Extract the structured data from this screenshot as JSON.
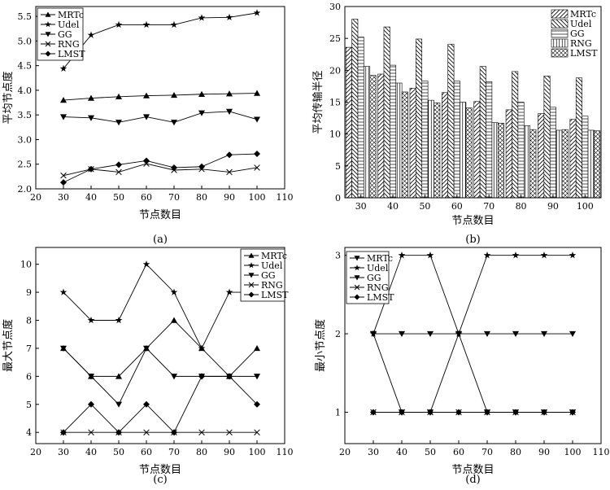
{
  "chart_data": [
    {
      "panel": "a",
      "type": "line",
      "caption": "(a)",
      "xlabel": "节点数目",
      "ylabel": "平均节点度",
      "xlim": [
        20,
        110
      ],
      "ylim": [
        2.0,
        5.7
      ],
      "xticks": [
        20,
        30,
        40,
        50,
        60,
        70,
        80,
        90,
        100,
        110
      ],
      "yticks": [
        2.0,
        2.5,
        3.0,
        3.5,
        4.0,
        4.5,
        5.0,
        5.5
      ],
      "legend_position": "top-left",
      "x": [
        30,
        40,
        50,
        60,
        70,
        80,
        90,
        100
      ],
      "series": [
        {
          "name": "MRTc",
          "marker": "triangle-up",
          "values": [
            3.8,
            3.84,
            3.87,
            3.89,
            3.9,
            3.92,
            3.93,
            3.94
          ]
        },
        {
          "name": "Udel",
          "marker": "star",
          "values": [
            4.44,
            5.12,
            5.33,
            5.33,
            5.33,
            5.47,
            5.48,
            5.57
          ]
        },
        {
          "name": "GG",
          "marker": "triangle-down",
          "values": [
            3.46,
            3.44,
            3.35,
            3.46,
            3.35,
            3.54,
            3.57,
            3.41
          ]
        },
        {
          "name": "RNG",
          "marker": "x",
          "values": [
            2.27,
            2.4,
            2.34,
            2.51,
            2.38,
            2.4,
            2.34,
            2.43
          ]
        },
        {
          "name": "LMST",
          "marker": "diamond",
          "values": [
            2.13,
            2.4,
            2.49,
            2.57,
            2.43,
            2.45,
            2.69,
            2.71
          ]
        }
      ]
    },
    {
      "panel": "b",
      "type": "bar",
      "caption": "(b)",
      "xlabel": "节点数目",
      "ylabel": "平均传输半径",
      "ylim": [
        0,
        30
      ],
      "yticks": [
        0,
        5,
        10,
        15,
        20,
        25,
        30
      ],
      "legend_position": "top-right",
      "categories": [
        "30",
        "40",
        "50",
        "60",
        "70",
        "80",
        "90",
        "100"
      ],
      "series": [
        {
          "name": "MRTc",
          "pattern": "diag-right",
          "values": [
            23.6,
            19.4,
            17.2,
            16.5,
            15.1,
            13.8,
            13.2,
            12.3
          ]
        },
        {
          "name": "Udel",
          "pattern": "diag-left",
          "values": [
            28.0,
            26.8,
            24.9,
            24.1,
            20.6,
            19.8,
            19.1,
            18.8
          ]
        },
        {
          "name": "GG",
          "pattern": "horizontal",
          "values": [
            25.2,
            20.8,
            18.3,
            18.3,
            18.2,
            15.0,
            14.2,
            12.8
          ]
        },
        {
          "name": "RNG",
          "pattern": "vertical",
          "values": [
            20.6,
            18.0,
            15.3,
            15.0,
            11.8,
            11.3,
            10.6,
            10.6
          ]
        },
        {
          "name": "LMST",
          "pattern": "crosshatch",
          "values": [
            19.2,
            16.6,
            14.9,
            14.1,
            11.7,
            10.7,
            10.7,
            10.5
          ]
        }
      ]
    },
    {
      "panel": "c",
      "type": "line",
      "caption": "(c)",
      "xlabel": "节点数目",
      "ylabel": "最大节点度",
      "xlim": [
        20,
        110
      ],
      "ylim": [
        3.6,
        10.6
      ],
      "xticks": [
        20,
        30,
        40,
        50,
        60,
        70,
        80,
        90,
        100,
        110
      ],
      "yticks": [
        4,
        5,
        6,
        7,
        8,
        9,
        10
      ],
      "legend_position": "top-right",
      "x": [
        30,
        40,
        50,
        60,
        70,
        80,
        90,
        100
      ],
      "series": [
        {
          "name": "MRTc",
          "marker": "triangle-up",
          "values": [
            7,
            6,
            6,
            7,
            8,
            7,
            6,
            7
          ]
        },
        {
          "name": "Udel",
          "marker": "star",
          "values": [
            9,
            8,
            8,
            10,
            9,
            7,
            9,
            9
          ]
        },
        {
          "name": "GG",
          "marker": "triangle-down",
          "values": [
            7,
            6,
            5,
            7,
            6,
            6,
            6,
            6
          ]
        },
        {
          "name": "RNG",
          "marker": "x",
          "values": [
            4,
            4,
            4,
            4,
            4,
            4,
            4,
            4
          ]
        },
        {
          "name": "LMST",
          "marker": "diamond",
          "values": [
            4,
            5,
            4,
            5,
            4,
            6,
            6,
            5
          ]
        }
      ]
    },
    {
      "panel": "d",
      "type": "line",
      "caption": "(d)",
      "xlabel": "节点数目",
      "ylabel": "最小节点度",
      "xlim": [
        20,
        110
      ],
      "ylim": [
        0.6,
        3.1
      ],
      "xticks": [
        20,
        30,
        40,
        50,
        60,
        70,
        80,
        90,
        100,
        110
      ],
      "yticks": [
        1,
        2,
        3
      ],
      "legend_position": "top-left",
      "x": [
        30,
        40,
        50,
        60,
        70,
        80,
        90,
        100
      ],
      "series": [
        {
          "name": "MRTc",
          "marker": "triangle-down",
          "values": [
            2,
            2,
            2,
            2,
            2,
            2,
            2,
            2
          ]
        },
        {
          "name": "Udel",
          "marker": "star",
          "values": [
            2,
            3,
            3,
            2,
            3,
            3,
            3,
            3
          ]
        },
        {
          "name": "GG",
          "marker": "triangle-down",
          "values": [
            2,
            1,
            1,
            2,
            1,
            1,
            1,
            1
          ]
        },
        {
          "name": "RNG",
          "marker": "x",
          "values": [
            1,
            1,
            1,
            1,
            1,
            1,
            1,
            1
          ]
        },
        {
          "name": "LMST",
          "marker": "diamond",
          "values": [
            1,
            1,
            1,
            1,
            1,
            1,
            1,
            1
          ]
        }
      ]
    }
  ]
}
